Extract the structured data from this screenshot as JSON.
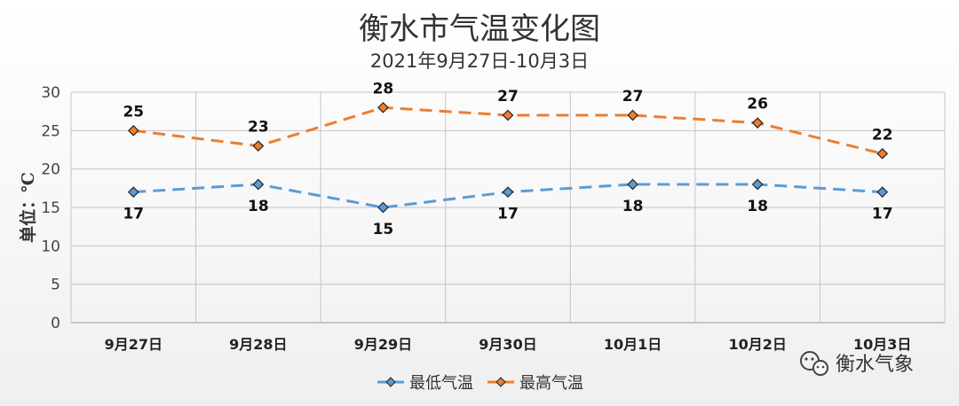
{
  "chart_data": {
    "type": "line",
    "title": "衡水市气温变化图",
    "subtitle": "2021年9月27日-10月3日",
    "ylabel": "单位：℃",
    "xlabel": "",
    "categories": [
      "9月27日",
      "9月28日",
      "9月29日",
      "9月30日",
      "10月1日",
      "10月2日",
      "10月3日"
    ],
    "ylim": [
      0,
      30
    ],
    "yticks": [
      0,
      5,
      10,
      15,
      20,
      25,
      30
    ],
    "grid": true,
    "legend_position": "bottom",
    "series": [
      {
        "name": "最低气温",
        "values": [
          17,
          18,
          15,
          17,
          18,
          18,
          17
        ],
        "color": "#5b9bd5",
        "marker": "diamond",
        "line_style": "dashed",
        "label_position": "below"
      },
      {
        "name": "最高气温",
        "values": [
          25,
          23,
          28,
          27,
          27,
          26,
          22
        ],
        "color": "#ed7d31",
        "marker": "diamond",
        "line_style": "dashed",
        "label_position": "above"
      }
    ]
  },
  "watermark": {
    "text": "衡水气象",
    "icon": "wechat-icon"
  }
}
